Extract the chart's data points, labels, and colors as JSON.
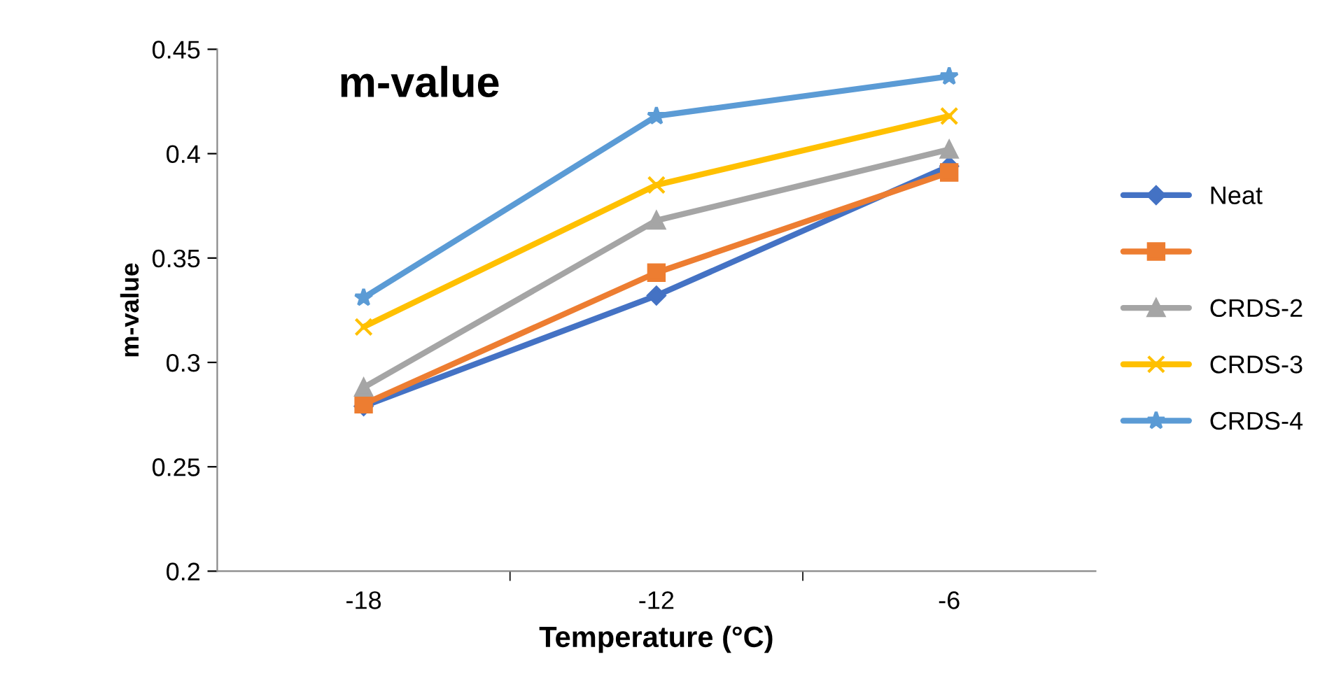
{
  "chart_data": {
    "type": "line",
    "title": "m-value",
    "xlabel": "Temperature (°C)",
    "ylabel": "m-value",
    "categories": [
      "-18",
      "-12",
      "-6"
    ],
    "series": [
      {
        "name": "Neat",
        "color": "#4472c4",
        "marker": "diamond",
        "values": [
          0.279,
          0.332,
          0.394
        ]
      },
      {
        "color": "#ed7d31",
        "marker": "square",
        "values": [
          0.28,
          0.343,
          0.391
        ]
      },
      {
        "name": "CRDS-2",
        "color": "#a5a5a5",
        "marker": "triangle",
        "values": [
          0.288,
          0.368,
          0.402
        ]
      },
      {
        "name": "CRDS-3",
        "color": "#ffc000",
        "marker": "cross",
        "values": [
          0.317,
          0.385,
          0.418
        ]
      },
      {
        "name": "CRDS-4",
        "color": "#5b9bd5",
        "marker": "star",
        "values": [
          0.331,
          0.418,
          0.437
        ]
      }
    ],
    "ylim": [
      0.2,
      0.45
    ],
    "yticks": [
      0.2,
      0.25,
      0.3,
      0.35,
      0.4,
      0.45
    ],
    "grid": false,
    "legend": "right"
  }
}
